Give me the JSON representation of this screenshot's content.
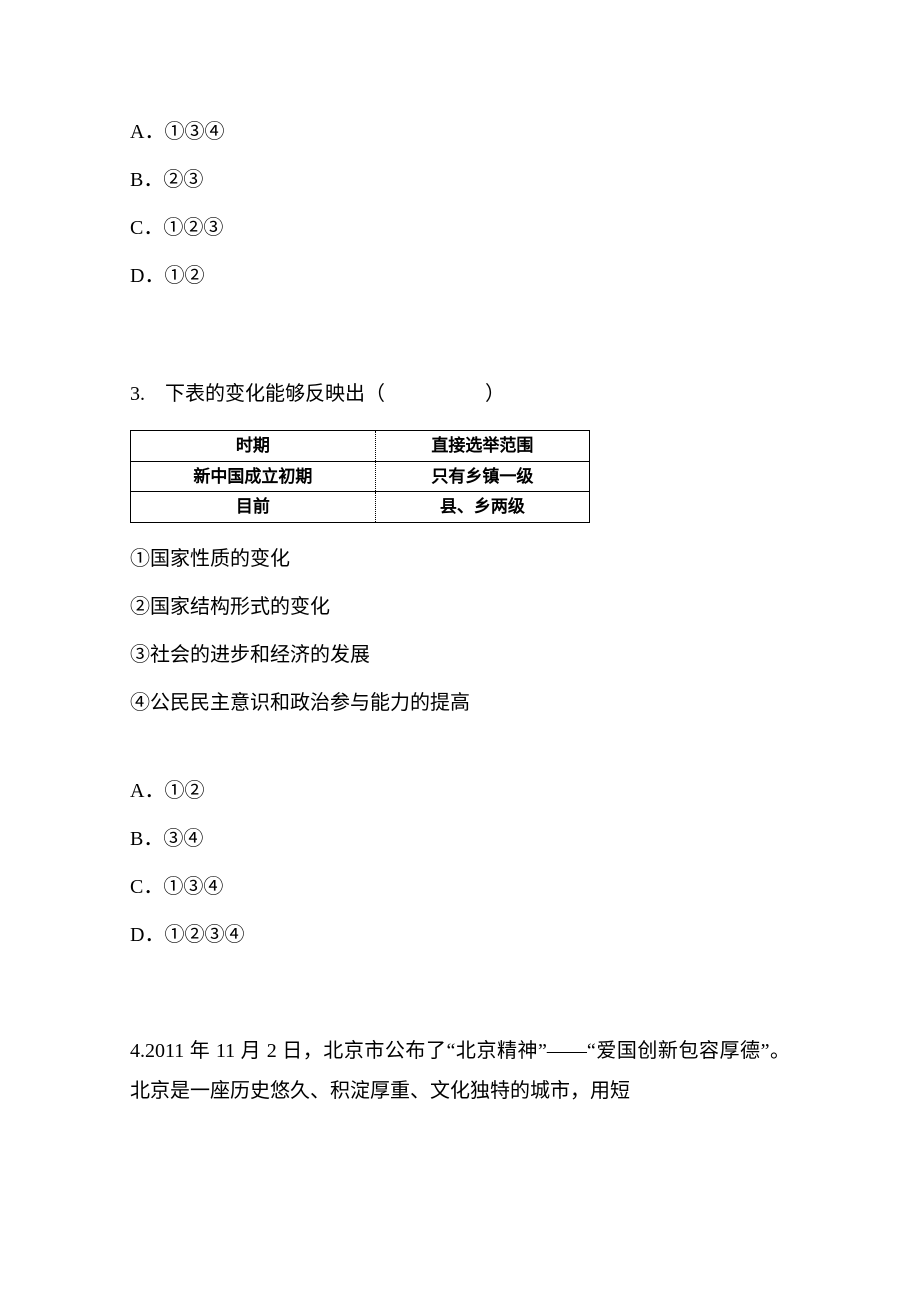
{
  "q2_tail_options": {
    "A": "A．①③④",
    "B": "B．②③",
    "C": "C．①②③",
    "D": "D．①②"
  },
  "q3": {
    "stem": "3.　下表的变化能够反映出（　　　　　）",
    "table": {
      "columns": [
        "时期",
        "直接选举范围"
      ],
      "rows": [
        [
          "新中国成立初期",
          "只有乡镇一级"
        ],
        [
          "目前",
          "县、乡两级"
        ]
      ]
    },
    "statements": {
      "s1": "①国家性质的变化",
      "s2": "②国家结构形式的变化",
      "s3": "③社会的进步和经济的发展",
      "s4": "④公民民主意识和政治参与能力的提高"
    },
    "options": {
      "A": "A．①②",
      "B": "B．③④",
      "C": "C．①③④",
      "D": "D．①②③④"
    }
  },
  "q4": {
    "para": "4.2011 年 11 月 2 日，北京市公布了“北京精神”——“爱国创新包容厚德”。北京是一座历史悠久、积淀厚重、文化独特的城市，用短"
  }
}
